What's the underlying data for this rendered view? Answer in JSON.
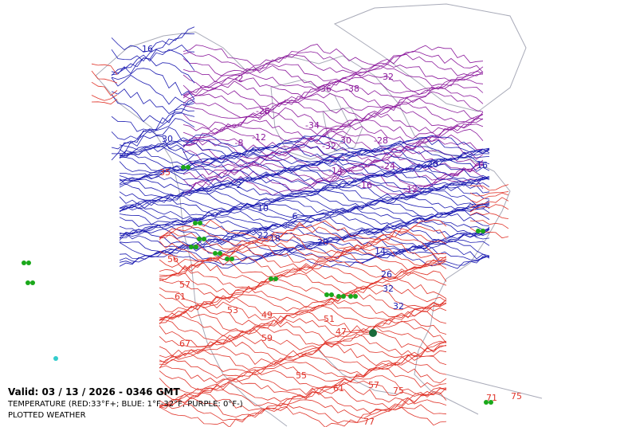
{
  "legend": {
    "valid": "Valid: 03 / 13 / 2026  -  0346 GMT",
    "temperature": "TEMPERATURE (RED:33°F+; BLUE: 1°F-32°F, PURPLE: 0°F-)",
    "weather": "PLOTTED WEATHER"
  },
  "contour_labels": [
    16,
    30,
    35,
    56,
    57,
    61,
    53,
    49,
    51,
    47,
    59,
    67,
    55,
    61,
    57,
    75,
    71,
    75,
    77,
    2,
    10,
    22,
    18,
    26,
    14,
    26,
    32,
    32,
    16,
    20,
    6,
    -36,
    -38,
    -32,
    -34,
    -30,
    -32,
    -28,
    -24,
    -16,
    -12,
    -12,
    -8,
    -2,
    -26,
    -14
  ]
}
